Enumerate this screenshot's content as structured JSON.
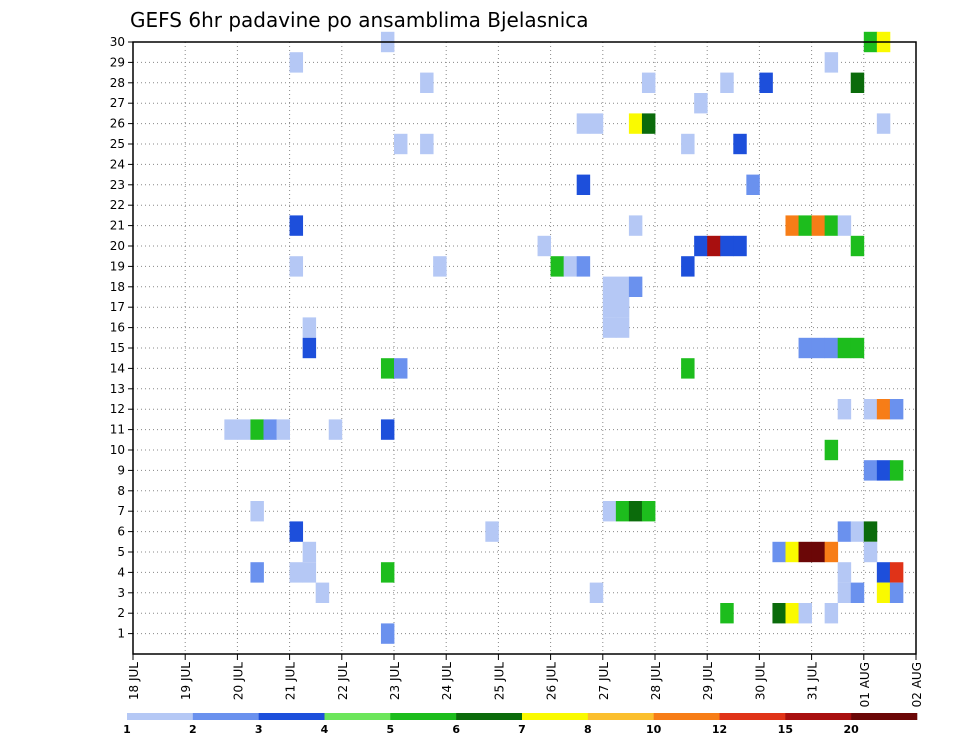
{
  "chart_data": {
    "type": "heatmap",
    "title": "GEFS 6hr padavine po ansamblima Bjelasnica",
    "xlabel": "",
    "ylabel": "",
    "x_ticks": [
      "18 JUL",
      "19 JUL",
      "20 JUL",
      "21 JUL",
      "22 JUL",
      "23 JUL",
      "24 JUL",
      "25 JUL",
      "26 JUL",
      "27 JUL",
      "28 JUL",
      "29 JUL",
      "30 JUL",
      "31 JUL",
      "01 AUG",
      "02 AUG"
    ],
    "y_ticks": [
      1,
      2,
      3,
      4,
      5,
      6,
      7,
      8,
      9,
      10,
      11,
      12,
      13,
      14,
      15,
      16,
      17,
      18,
      19,
      20,
      21,
      22,
      23,
      24,
      25,
      26,
      27,
      28,
      29,
      30
    ],
    "xlim_days": [
      0,
      15
    ],
    "ylim": [
      0,
      30
    ],
    "step_per_day": 4,
    "grid": true,
    "legend": {
      "placement": "bottom",
      "labels": [
        "1",
        "2",
        "3",
        "4",
        "5",
        "6",
        "7",
        "8",
        "10",
        "12",
        "15",
        "20"
      ],
      "colors": [
        "#b5c8f5",
        "#6a91ee",
        "#1d4fdb",
        "#6ce65b",
        "#1dbd1d",
        "#0b6b0b",
        "#fafa00",
        "#fbbf2e",
        "#f77d17",
        "#e03318",
        "#a80f0f",
        "#6b0707"
      ]
    },
    "cell_units": "day index (0 = 18 JUL), 6-hour step (0-3), ensemble member, precipitation class (1-12)",
    "cells": [
      [
        2,
        0,
        11,
        1
      ],
      [
        2,
        1,
        11,
        5
      ],
      [
        2,
        2,
        11,
        2
      ],
      [
        2,
        3,
        11,
        1
      ],
      [
        1,
        3,
        11,
        1
      ],
      [
        3,
        3,
        11,
        1
      ],
      [
        3,
        0,
        21,
        3
      ],
      [
        3,
        0,
        19,
        1
      ],
      [
        3,
        0,
        29,
        1
      ],
      [
        3,
        0,
        6,
        3
      ],
      [
        3,
        0,
        4,
        1
      ],
      [
        3,
        1,
        4,
        1
      ],
      [
        3,
        1,
        5,
        1
      ],
      [
        3,
        1,
        16,
        1
      ],
      [
        3,
        1,
        15,
        3
      ],
      [
        3,
        2,
        3,
        1
      ],
      [
        2,
        1,
        4,
        2
      ],
      [
        2,
        1,
        7,
        1
      ],
      [
        4,
        3,
        30,
        1
      ],
      [
        4,
        3,
        14,
        5
      ],
      [
        5,
        0,
        14,
        2
      ],
      [
        4,
        3,
        11,
        3
      ],
      [
        4,
        3,
        4,
        5
      ],
      [
        4,
        3,
        1,
        2
      ],
      [
        5,
        0,
        25,
        1
      ],
      [
        5,
        2,
        25,
        1
      ],
      [
        5,
        2,
        28,
        1
      ],
      [
        5,
        3,
        19,
        1
      ],
      [
        6,
        3,
        6,
        1
      ],
      [
        7,
        3,
        20,
        1
      ],
      [
        8,
        0,
        19,
        5
      ],
      [
        8,
        1,
        19,
        1
      ],
      [
        8,
        2,
        19,
        2
      ],
      [
        8,
        2,
        26,
        1
      ],
      [
        8,
        3,
        26,
        1
      ],
      [
        8,
        2,
        23,
        3
      ],
      [
        8,
        3,
        3,
        1
      ],
      [
        9,
        0,
        18,
        1
      ],
      [
        9,
        0,
        17,
        1
      ],
      [
        9,
        0,
        16,
        1
      ],
      [
        9,
        1,
        18,
        1
      ],
      [
        9,
        1,
        17,
        1
      ],
      [
        9,
        1,
        16,
        1
      ],
      [
        9,
        2,
        18,
        2
      ],
      [
        9,
        2,
        26,
        7
      ],
      [
        9,
        3,
        26,
        6
      ],
      [
        9,
        0,
        7,
        1
      ],
      [
        9,
        1,
        7,
        5
      ],
      [
        9,
        2,
        7,
        6
      ],
      [
        9,
        3,
        7,
        5
      ],
      [
        9,
        3,
        28,
        1
      ],
      [
        9,
        2,
        21,
        1
      ],
      [
        10,
        2,
        19,
        3
      ],
      [
        10,
        2,
        14,
        5
      ],
      [
        10,
        2,
        25,
        1
      ],
      [
        10,
        3,
        20,
        3
      ],
      [
        10,
        3,
        27,
        1
      ],
      [
        11,
        0,
        20,
        11
      ],
      [
        11,
        1,
        20,
        3
      ],
      [
        11,
        2,
        20,
        3
      ],
      [
        11,
        1,
        28,
        1
      ],
      [
        11,
        3,
        23,
        2
      ],
      [
        11,
        2,
        25,
        3
      ],
      [
        11,
        1,
        2,
        5
      ],
      [
        12,
        2,
        21,
        9
      ],
      [
        12,
        3,
        21,
        5
      ],
      [
        13,
        0,
        21,
        9
      ],
      [
        13,
        1,
        21,
        5
      ],
      [
        12,
        1,
        5,
        2
      ],
      [
        12,
        2,
        5,
        7
      ],
      [
        12,
        3,
        5,
        12
      ],
      [
        13,
        0,
        5,
        12
      ],
      [
        13,
        1,
        5,
        9
      ],
      [
        12,
        0,
        28,
        3
      ],
      [
        12,
        3,
        15,
        2
      ],
      [
        13,
        0,
        15,
        2
      ],
      [
        13,
        1,
        15,
        2
      ],
      [
        13,
        2,
        15,
        5
      ],
      [
        13,
        3,
        15,
        5
      ],
      [
        13,
        3,
        20,
        5
      ],
      [
        13,
        1,
        10,
        5
      ],
      [
        13,
        1,
        29,
        1
      ],
      [
        12,
        1,
        2,
        6
      ],
      [
        12,
        2,
        2,
        7
      ],
      [
        12,
        3,
        2,
        1
      ],
      [
        13,
        1,
        2,
        1
      ],
      [
        13,
        2,
        3,
        1
      ],
      [
        13,
        3,
        3,
        2
      ],
      [
        13,
        2,
        4,
        1
      ],
      [
        13,
        2,
        6,
        2
      ],
      [
        13,
        3,
        6,
        1
      ],
      [
        14,
        0,
        6,
        6
      ],
      [
        14,
        0,
        5,
        1
      ],
      [
        13,
        2,
        21,
        1
      ],
      [
        13,
        3,
        28,
        6
      ],
      [
        13,
        2,
        12,
        1
      ],
      [
        14,
        0,
        12,
        1
      ],
      [
        14,
        1,
        12,
        9
      ],
      [
        14,
        2,
        12,
        2
      ],
      [
        14,
        0,
        9,
        2
      ],
      [
        14,
        1,
        9,
        3
      ],
      [
        14,
        2,
        9,
        5
      ],
      [
        14,
        0,
        30,
        5
      ],
      [
        14,
        1,
        30,
        7
      ],
      [
        14,
        1,
        26,
        1
      ],
      [
        14,
        1,
        4,
        3
      ],
      [
        14,
        2,
        4,
        10
      ],
      [
        14,
        1,
        3,
        7
      ],
      [
        14,
        2,
        3,
        2
      ]
    ]
  }
}
